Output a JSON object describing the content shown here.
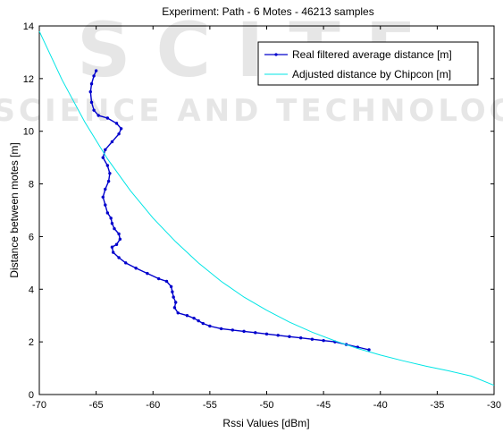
{
  "chart_data": {
    "type": "line",
    "title": "Experiment: Path - 6 Motes - 46213 samples",
    "xlabel": "Rssi Values [dBm]",
    "ylabel": "Distance between motes [m]",
    "xlim": [
      -70,
      -30
    ],
    "ylim": [
      0,
      14
    ],
    "x_ticks": [
      -70,
      -65,
      -60,
      -55,
      -50,
      -45,
      -40,
      -35,
      -30
    ],
    "y_ticks": [
      0,
      2,
      4,
      6,
      8,
      10,
      12,
      14
    ],
    "grid": false,
    "legend_placement": "top-right",
    "series": [
      {
        "name": "Real filtered average distance [m]",
        "color": "#0000cc",
        "marker": "dot",
        "x": [
          -65.0,
          -65.2,
          -65.4,
          -65.5,
          -65.4,
          -65.2,
          -64.8,
          -64.0,
          -63.2,
          -62.8,
          -63.0,
          -63.6,
          -64.2,
          -64.4,
          -64.0,
          -63.8,
          -63.9,
          -64.2,
          -64.4,
          -64.2,
          -64.0,
          -63.7,
          -63.6,
          -63.4,
          -63.0,
          -62.9,
          -63.2,
          -63.6,
          -63.5,
          -63.0,
          -62.4,
          -61.5,
          -60.5,
          -59.5,
          -58.8,
          -58.4,
          -58.3,
          -58.2,
          -58.0,
          -58.1,
          -57.8,
          -57.0,
          -56.4,
          -56.0,
          -55.6,
          -55.0,
          -54.0,
          -53.0,
          -52.0,
          -51.0,
          -50.0,
          -49.0,
          -48.0,
          -47.0,
          -46.0,
          -45.0,
          -44.0,
          -43.0,
          -42.0,
          -41.0
        ],
        "y": [
          12.3,
          12.1,
          11.8,
          11.5,
          11.1,
          10.8,
          10.6,
          10.5,
          10.3,
          10.1,
          9.9,
          9.6,
          9.3,
          9.0,
          8.7,
          8.4,
          8.1,
          7.8,
          7.5,
          7.2,
          6.9,
          6.7,
          6.5,
          6.3,
          6.1,
          5.9,
          5.7,
          5.6,
          5.4,
          5.2,
          5.0,
          4.8,
          4.6,
          4.4,
          4.3,
          4.1,
          3.9,
          3.7,
          3.5,
          3.3,
          3.1,
          3.0,
          2.9,
          2.8,
          2.7,
          2.6,
          2.5,
          2.45,
          2.4,
          2.35,
          2.3,
          2.25,
          2.2,
          2.15,
          2.1,
          2.05,
          2.0,
          1.9,
          1.8,
          1.7
        ]
      },
      {
        "name": "Adjusted distance by Chipcon [m]",
        "color": "#00e5e5",
        "marker": "none",
        "x": [
          -70,
          -68,
          -66,
          -64,
          -62,
          -60,
          -58,
          -56,
          -54,
          -52,
          -50,
          -48,
          -46,
          -44,
          -42,
          -40,
          -38,
          -36,
          -34,
          -32,
          -30
        ],
        "y": [
          13.8,
          11.95,
          10.35,
          8.95,
          7.75,
          6.7,
          5.8,
          5.0,
          4.3,
          3.7,
          3.2,
          2.75,
          2.37,
          2.04,
          1.75,
          1.5,
          1.28,
          1.08,
          0.9,
          0.7,
          0.35
        ]
      }
    ]
  },
  "watermark": {
    "line1": "SCITE",
    "line2": "SCIENCE AND TECHNOLOGY"
  }
}
